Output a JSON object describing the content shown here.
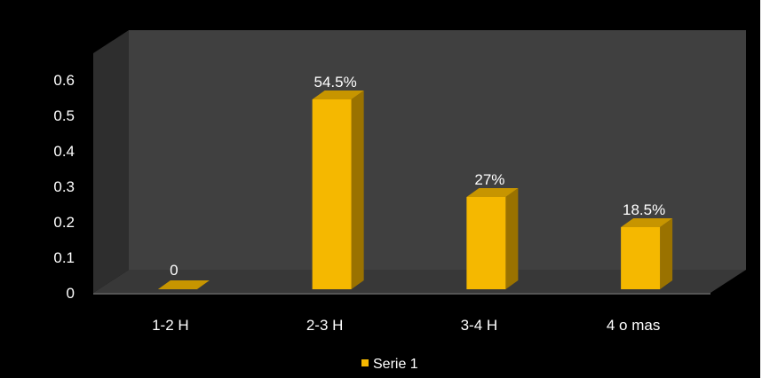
{
  "colors": {
    "background": "#000000",
    "back_wall": "#404040",
    "side_wall": "#2e2e2e",
    "floor": "#383838",
    "bar_front": "#f5b800",
    "bar_side": "#9a7200",
    "bar_top": "#c79500",
    "text": "#ffffff"
  },
  "chart_data": {
    "type": "bar",
    "style": "3d-column",
    "categories": [
      "1-2 H",
      "2-3 H",
      "3-4 H",
      "4 o mas"
    ],
    "series": [
      {
        "name": "Serie 1",
        "values": [
          0,
          0.545,
          0.27,
          0.185
        ]
      }
    ],
    "data_labels": [
      "0",
      "54.5%",
      "27%",
      "18.5%"
    ],
    "ylim": [
      0,
      0.6
    ],
    "yticks": [
      "0",
      "0.1",
      "0.2",
      "0.3",
      "0.4",
      "0.5",
      "0.6"
    ],
    "ytick_values": [
      0,
      0.1,
      0.2,
      0.3,
      0.4,
      0.5,
      0.6
    ],
    "grid": false,
    "legend": {
      "position": "bottom",
      "entries": [
        "Serie 1"
      ]
    }
  }
}
